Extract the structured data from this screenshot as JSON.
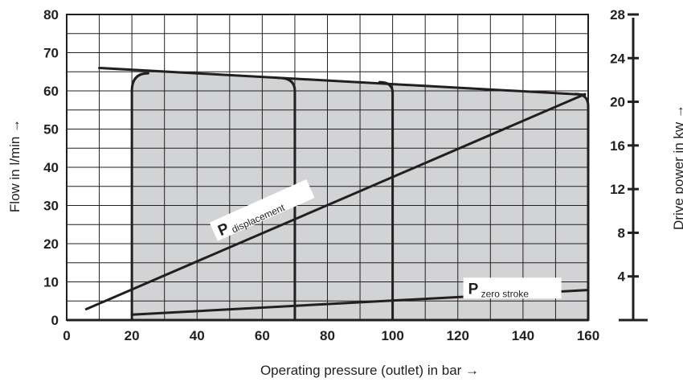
{
  "chart_data": {
    "type": "line",
    "xlabel": "Operating pressure (outlet) in bar →",
    "ylabel": "Flow in l/min →",
    "y2label": "Drive power in kw →",
    "xlim": [
      0,
      160
    ],
    "ylim": [
      0,
      80
    ],
    "y2lim": [
      0,
      28
    ],
    "x_ticks": [
      "0",
      "20",
      "40",
      "60",
      "80",
      "100",
      "120",
      "140",
      "160"
    ],
    "y_ticks": [
      "0",
      "10",
      "20",
      "30",
      "40",
      "50",
      "60",
      "70",
      "80"
    ],
    "y2_ticks": [
      "4",
      "8",
      "12",
      "16",
      "20",
      "24",
      "28"
    ],
    "grid": true,
    "shaded_region": {
      "x": [
        20,
        160
      ],
      "y_max_x": [
        10,
        159
      ],
      "y_max": [
        66,
        59
      ],
      "color": "#d2d3d5"
    },
    "series": [
      {
        "x": [
          10,
          159
        ],
        "y": [
          66,
          59
        ]
      },
      {
        "x": [
          20,
          20,
          25
        ],
        "y": [
          0,
          60,
          64.6
        ]
      },
      {
        "x": [
          70,
          70,
          65
        ],
        "y": [
          0,
          60,
          63.4
        ]
      },
      {
        "x": [
          100,
          100,
          96
        ],
        "y": [
          0,
          59.5,
          62.3
        ]
      },
      {
        "x": [
          160,
          160,
          156
        ],
        "y": [
          0,
          56,
          59.2
        ]
      },
      {
        "x": [
          6,
          159
        ],
        "y2": [
          1.0,
          20.7
        ]
      },
      {
        "x": [
          20,
          160
        ],
        "y2": [
          0.5,
          2.75
        ]
      }
    ],
    "annotations": [
      {
        "main": "P",
        "sub": "displacement",
        "x": 45,
        "y": 23
      },
      {
        "main": "P",
        "sub": "zero stroke",
        "x": 135,
        "y": 9
      }
    ]
  }
}
